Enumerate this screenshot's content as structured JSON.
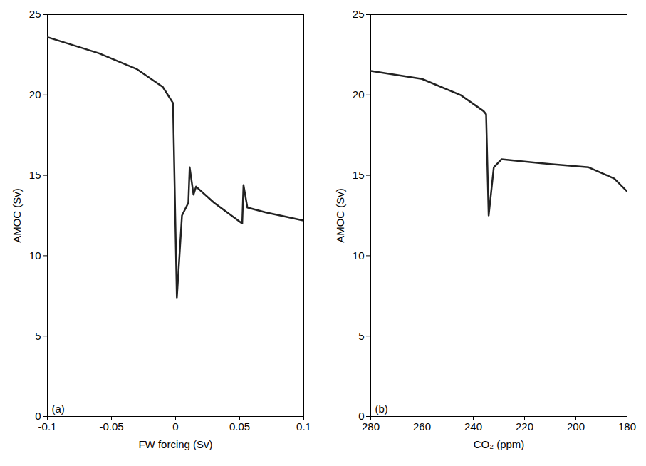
{
  "chart_data": [
    {
      "type": "line",
      "title": "(a)",
      "xlabel": "FW forcing (Sv)",
      "ylabel": "AMOC (Sv)",
      "x": [
        -0.1,
        -0.06,
        -0.03,
        -0.01,
        -0.002,
        0.001,
        0.005,
        0.01,
        0.011,
        0.014,
        0.016,
        0.03,
        0.052,
        0.053,
        0.056,
        0.07,
        0.099
      ],
      "series": [
        {
          "name": "AMOC",
          "color": "#222222",
          "values": [
            23.6,
            22.6,
            21.6,
            20.5,
            19.5,
            7.4,
            12.5,
            13.3,
            15.5,
            13.8,
            14.3,
            13.3,
            12.0,
            14.4,
            13.0,
            12.7,
            12.2
          ]
        }
      ],
      "xlim": [
        -0.1,
        0.1
      ],
      "xticks": [
        -0.1,
        -0.05,
        0,
        0.05,
        0.1
      ],
      "ylim": [
        0,
        25
      ],
      "yticks": [
        0,
        5,
        10,
        15,
        20,
        25
      ],
      "grid": false
    },
    {
      "type": "line",
      "title": "(b)",
      "xlabel": "CO₂ (ppm)",
      "ylabel": "AMOC (Sv)",
      "x": [
        280,
        260,
        245,
        236,
        235,
        234,
        232,
        229,
        210,
        195,
        185,
        180
      ],
      "series": [
        {
          "name": "AMOC",
          "color": "#222222",
          "values": [
            21.5,
            21.0,
            20.0,
            19.0,
            18.8,
            12.5,
            15.5,
            16.0,
            15.7,
            15.5,
            14.8,
            14.0
          ]
        }
      ],
      "xlim": [
        280,
        180
      ],
      "xticks": [
        280,
        260,
        240,
        220,
        200,
        180
      ],
      "ylim": [
        0,
        25
      ],
      "yticks": [
        0,
        5,
        10,
        15,
        20,
        25
      ],
      "grid": false
    }
  ]
}
